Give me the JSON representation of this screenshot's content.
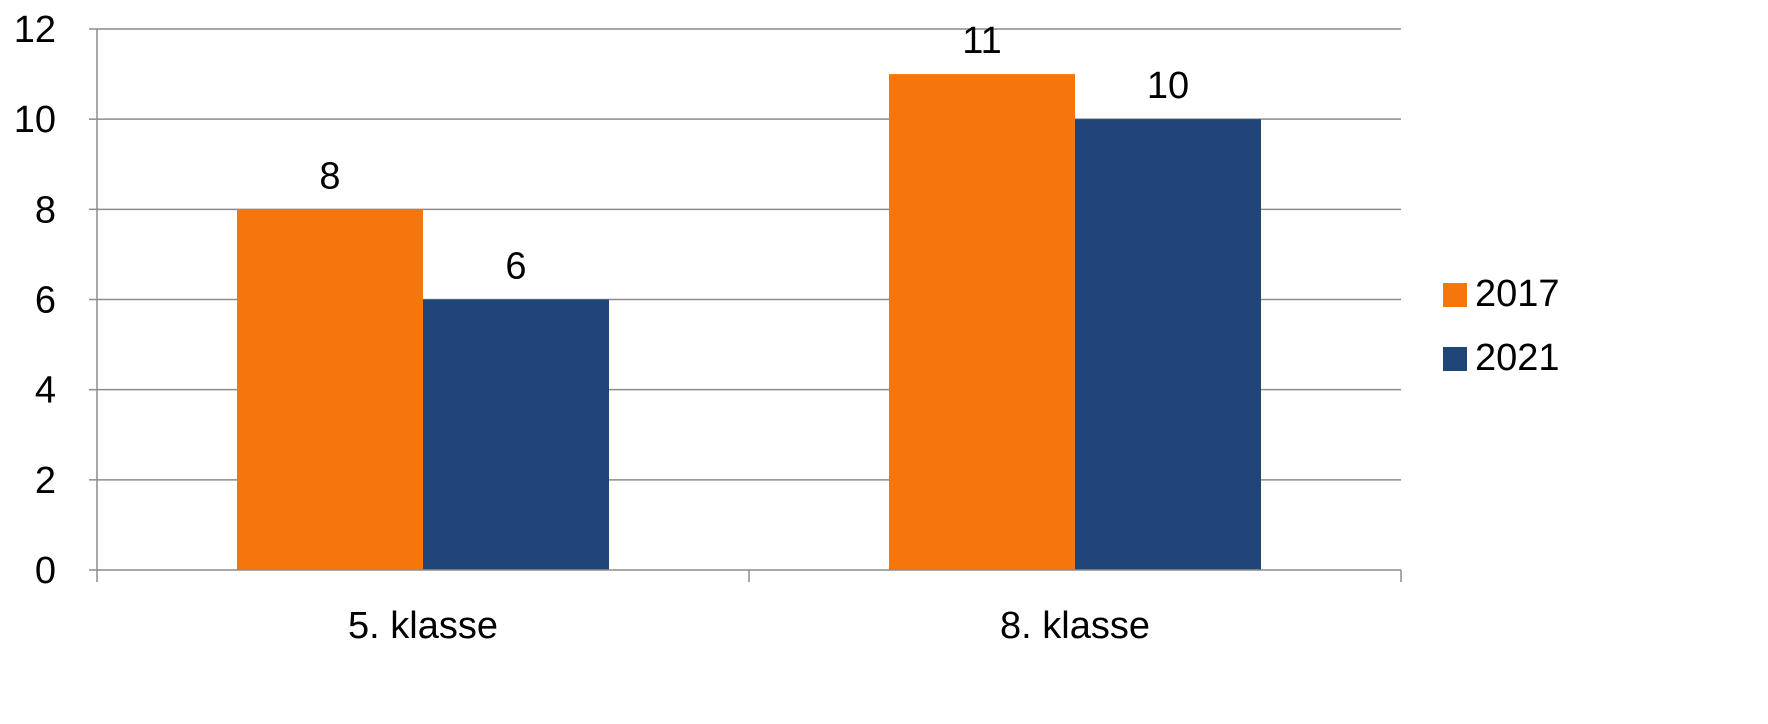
{
  "chart_data": {
    "type": "bar",
    "categories": [
      "5. klasse",
      "8. klasse"
    ],
    "series": [
      {
        "name": "2017",
        "values": [
          8,
          11
        ],
        "color": "#F5760D"
      },
      {
        "name": "2021",
        "values": [
          6,
          10
        ],
        "color": "#1F4677"
      }
    ],
    "title": "",
    "xlabel": "",
    "ylabel": "",
    "ylim": [
      0,
      12
    ],
    "yticks": [
      0,
      2,
      4,
      6,
      8,
      10,
      12
    ],
    "grid": true,
    "data_labels": true,
    "legend_position": "right"
  }
}
